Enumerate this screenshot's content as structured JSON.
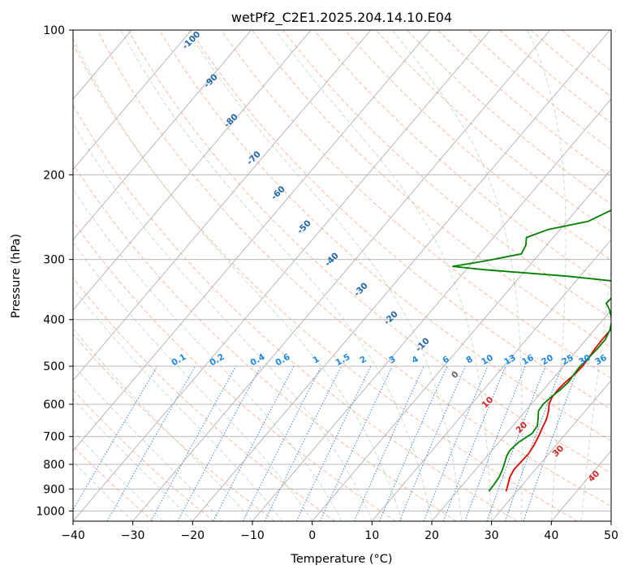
{
  "chart_data": {
    "type": "line",
    "title": "wetPf2_C2E1.2025.204.14.10.E04",
    "xlabel": "Temperature (°C)",
    "ylabel": "Pressure (hPa)",
    "xlim": [
      -40,
      50
    ],
    "ylim": [
      1050,
      100
    ],
    "y_scale": "log",
    "grid": true,
    "x_ticks": [
      -40,
      -30,
      -20,
      -10,
      0,
      10,
      20,
      30,
      40,
      50
    ],
    "y_ticks": [
      100,
      200,
      300,
      400,
      500,
      600,
      700,
      800,
      900,
      1000
    ],
    "x_tick_labels": [
      "−40",
      "−30",
      "−20",
      "−10",
      "0",
      "10",
      "20",
      "30",
      "40",
      "50"
    ],
    "y_tick_labels": [
      "100",
      "200",
      "300",
      "400",
      "500",
      "600",
      "700",
      "800",
      "900",
      "1000"
    ],
    "series": [
      {
        "color": "#e60000",
        "points": [
          [
            28.2,
            910
          ],
          [
            27.5,
            880
          ],
          [
            26.8,
            850
          ],
          [
            26.4,
            820
          ],
          [
            26.5,
            790
          ],
          [
            26.6,
            760
          ],
          [
            26.3,
            730
          ],
          [
            25.8,
            700
          ],
          [
            25.2,
            670
          ],
          [
            24.7,
            645
          ],
          [
            23.9,
            620
          ],
          [
            23.0,
            600
          ],
          [
            22.5,
            580
          ],
          [
            22.4,
            560
          ],
          [
            22.6,
            540
          ],
          [
            23.0,
            520
          ],
          [
            23.2,
            500
          ],
          [
            23.0,
            480
          ],
          [
            22.8,
            460
          ],
          [
            22.7,
            440
          ],
          [
            22.7,
            420
          ],
          [
            22.8,
            400
          ],
          [
            22.4,
            380
          ],
          [
            21.8,
            360
          ],
          [
            21.9,
            340
          ],
          [
            21.5,
            320
          ],
          [
            20.5,
            300
          ],
          [
            19.5,
            280
          ],
          [
            18.3,
            260
          ],
          [
            16.8,
            240
          ],
          [
            15.1,
            220
          ],
          [
            13.6,
            200
          ],
          [
            12.3,
            180
          ],
          [
            10.9,
            160
          ],
          [
            9.5,
            145
          ],
          [
            8.0,
            130
          ],
          [
            7.1,
            120
          ],
          [
            6.2,
            110
          ],
          [
            5.8,
            103
          ],
          [
            5.6,
            100
          ]
        ]
      },
      {
        "color": "#008000",
        "points": [
          [
            25.3,
            910
          ],
          [
            25.2,
            880
          ],
          [
            25.0,
            850
          ],
          [
            24.5,
            820
          ],
          [
            23.8,
            790
          ],
          [
            23.3,
            770
          ],
          [
            23.0,
            750
          ],
          [
            23.3,
            720
          ],
          [
            24.3,
            690
          ],
          [
            24.1,
            665
          ],
          [
            23.1,
            640
          ],
          [
            22.2,
            620
          ],
          [
            22.0,
            600
          ],
          [
            22.3,
            580
          ],
          [
            22.8,
            560
          ],
          [
            23.1,
            540
          ],
          [
            22.9,
            520
          ],
          [
            22.8,
            500
          ],
          [
            23.0,
            480
          ],
          [
            23.2,
            460
          ],
          [
            23.2,
            440
          ],
          [
            22.6,
            420
          ],
          [
            21.5,
            400
          ],
          [
            19.5,
            380
          ],
          [
            18.2,
            370
          ],
          [
            18.4,
            355
          ],
          [
            19.8,
            345
          ],
          [
            18.8,
            335
          ],
          [
            8.0,
            325
          ],
          [
            -7.0,
            315
          ],
          [
            -12.7,
            310
          ],
          [
            -8.0,
            302
          ],
          [
            -3.0,
            292
          ],
          [
            -3.5,
            280
          ],
          [
            -4.5,
            270
          ],
          [
            -2.0,
            260
          ],
          [
            3.5,
            250
          ],
          [
            6.2,
            235
          ],
          [
            6.7,
            220
          ],
          [
            5.5,
            205
          ],
          [
            5.3,
            195
          ],
          [
            4.0,
            175
          ],
          [
            3.0,
            160
          ],
          [
            3.3,
            145
          ],
          [
            2.4,
            132
          ],
          [
            1.0,
            118
          ],
          [
            0.6,
            110
          ],
          [
            0.4,
            103
          ],
          [
            0.3,
            100
          ]
        ]
      }
    ],
    "isotherm_labels": [],
    "dry_adiabat_labels": [
      "-100",
      "-90",
      "-80",
      "-70",
      "-60",
      "-50",
      "-40",
      "-30",
      "-20",
      "-10"
    ],
    "dry_adiabat_grey_label": "0",
    "moist_adiabat_labels": [
      "10",
      "20",
      "30",
      "40"
    ],
    "mixing_ratio_labels": [
      "0.1",
      "0.2",
      "0.4",
      "0.6",
      "1",
      "1.5",
      "2",
      "3",
      "4",
      "6",
      "8",
      "10",
      "13",
      "16",
      "20",
      "25",
      "30",
      "36"
    ],
    "colors": {
      "temperature": "#e60000",
      "dewpoint": "#008000",
      "grid": "#b0b0b0",
      "dry_adiabat": "#f4a582",
      "moist_adiabat": "#a6d8a6",
      "mixing_ratio": "#1f77d4",
      "dry_adiabat_label": "#2166ac",
      "moist_adiabat_label": "#d62728",
      "mixing_ratio_label": "#1e88e5"
    }
  }
}
